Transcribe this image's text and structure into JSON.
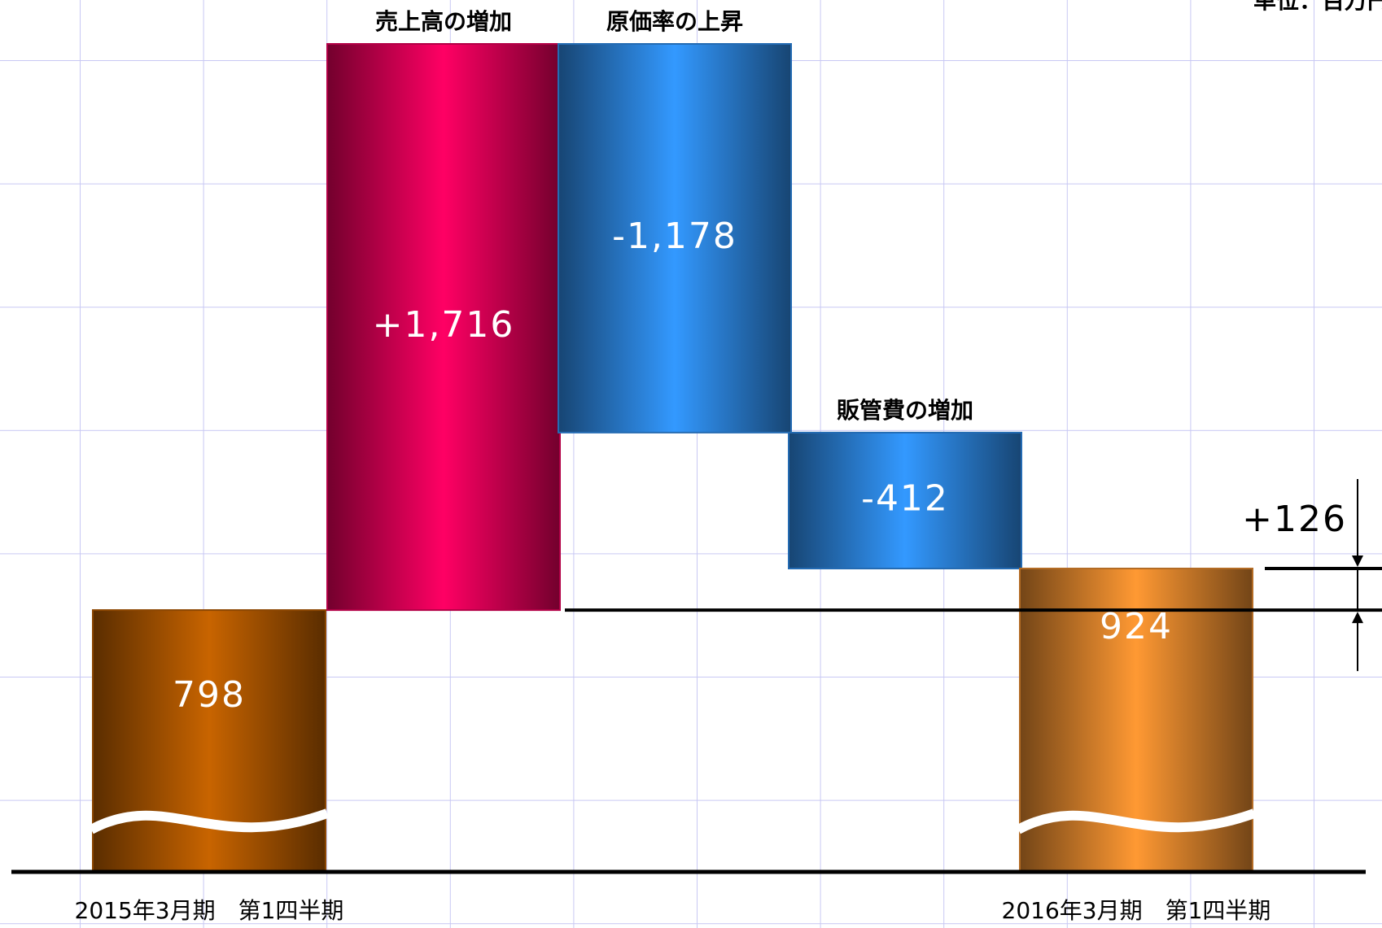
{
  "chart_data": {
    "type": "waterfall",
    "unit_note": "単位：百万円",
    "categories": [
      "2015年3月期　第1四半期",
      "売上高の増加",
      "原価率の上昇",
      "販管費の増加",
      "2016年3月期　第1四半期"
    ],
    "values": [
      798,
      1716,
      -1178,
      -412,
      924
    ],
    "value_labels": [
      "798",
      "+1,716",
      "-1,178",
      "-412",
      "924"
    ],
    "totals": [
      true,
      false,
      false,
      false,
      true
    ],
    "colors": [
      "#c86400",
      "#ff0064",
      "#3399ff",
      "#3399ff",
      "#ff9933"
    ],
    "difference": {
      "value": 126,
      "label": "+126"
    }
  }
}
